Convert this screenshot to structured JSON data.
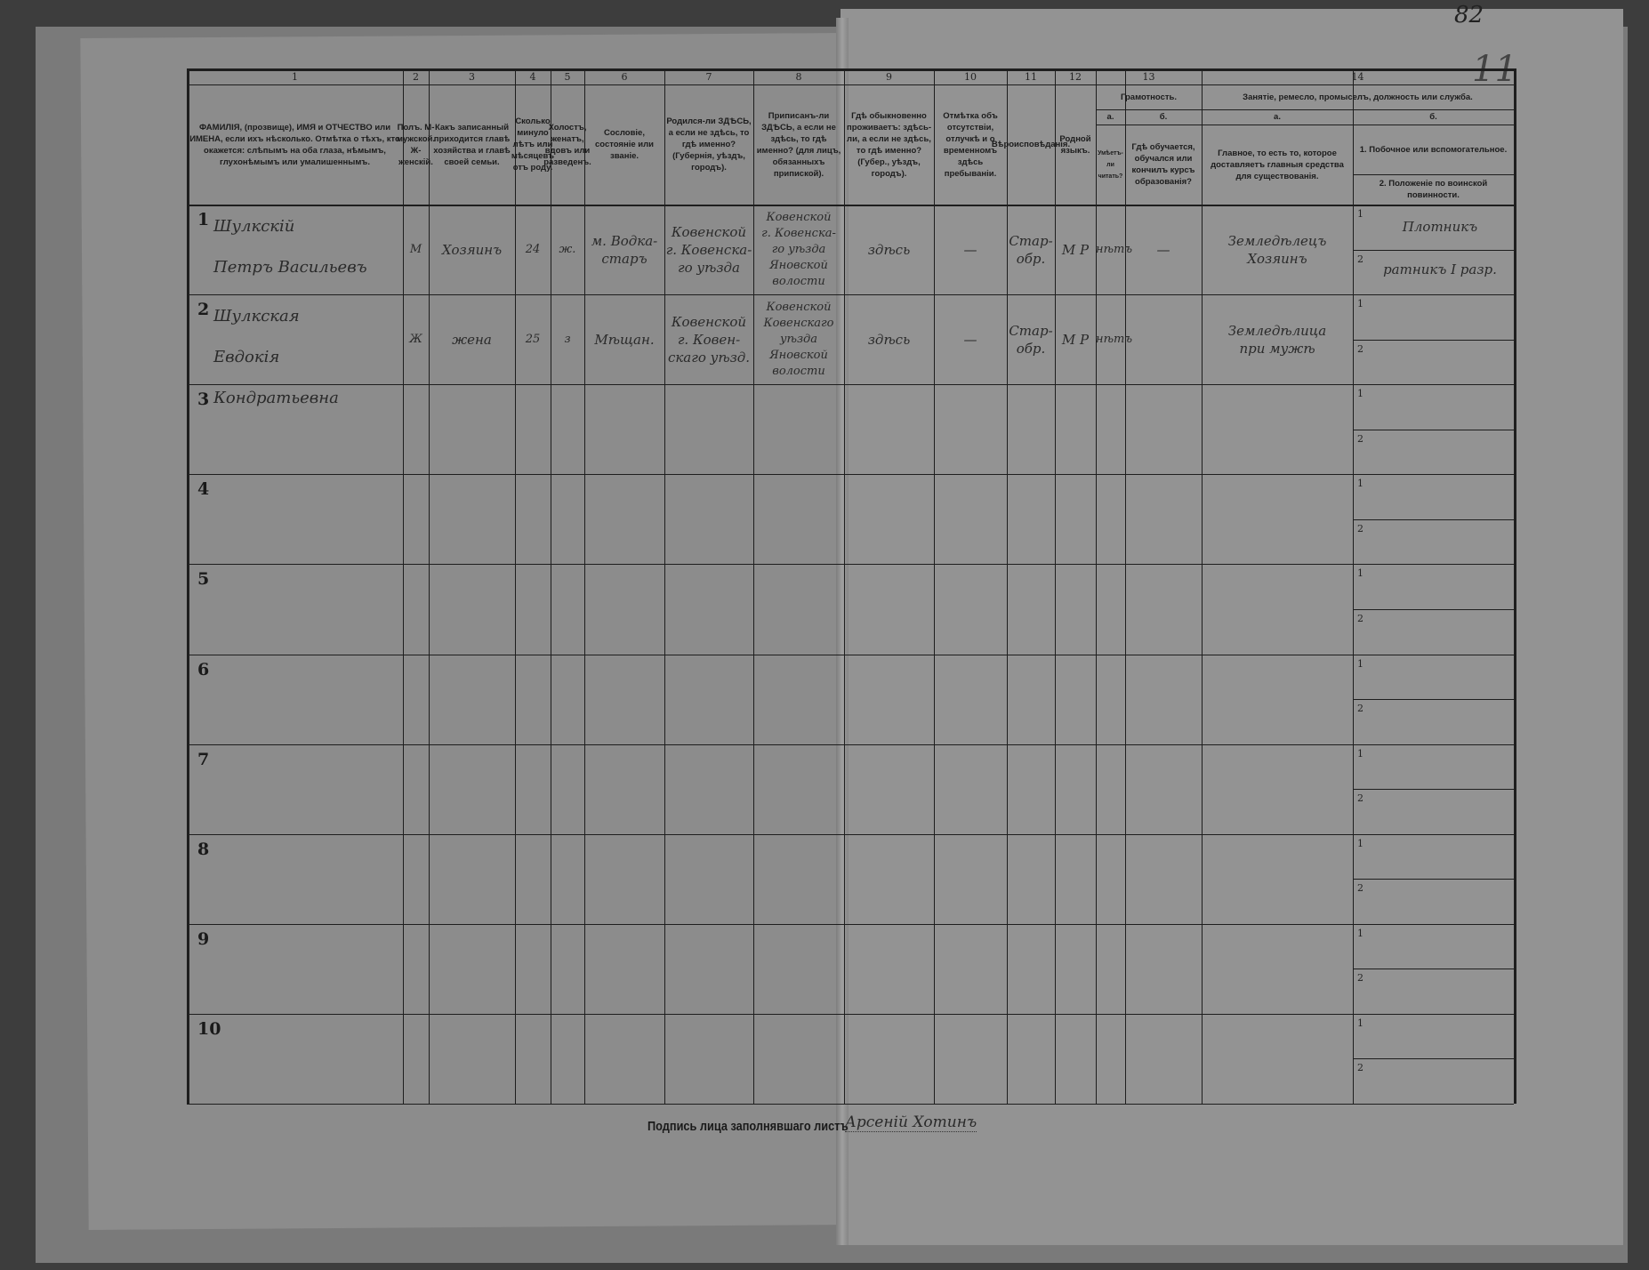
{
  "document": {
    "page_number": "82",
    "page_mark": "11",
    "column_numbers": [
      "1",
      "2",
      "3",
      "4",
      "5",
      "6",
      "7",
      "8",
      "9",
      "10",
      "11",
      "12",
      "13",
      "14"
    ],
    "headers": {
      "c1": "ФАМИЛІЯ, (прозвище), ИМЯ и ОТЧЕСТВО или ИМЕНА, если ихъ нѣсколько. Отмѣтка о тѣхъ, кто окажется: слѣпымъ на оба глаза, нѣмымъ, глухонѣмымъ или умалишеннымъ.",
      "c2": "Полъ. М-мужской. Ж-женскій.",
      "c3": "Какъ записанный приходится главѣ хозяйства и главѣ своей семьи.",
      "c4": "Сколько минуло лѣтъ или мѣсяцевъ отъ роду.",
      "c5": "Холостъ, женатъ, вдовъ или разведенъ.",
      "c6": "Сословіе, состояніе или званіе.",
      "c7": "Родился-ли ЗДѢСЬ, а если не здѣсь, то гдѣ именно? (Губернія, уѣздъ, городъ).",
      "c8": "Приписанъ-ли ЗДѢСЬ, а если не здѣсь, то гдѣ именно? (для лицъ, обязанныхъ припиской).",
      "c9": "Гдѣ обыкновенно проживаетъ: здѣсь-ли, а если не здѣсь, то гдѣ именно? (Губер., уѣздъ, городъ).",
      "c10": "Отмѣтка объ отсутствіи, отлучкѣ и о временномъ здѣсь пребываніи.",
      "c11": "Вѣроисповѣданія.",
      "c12": "Родной языкъ.",
      "c13": "Грамотность.",
      "c13a_letter": "а.",
      "c13a": "Умѣетъ-ли читать?",
      "c13b_letter": "б.",
      "c13b": "Гдѣ обучается, обучался или кончилъ курсъ образованія?",
      "c14": "Занятіе, ремесло, промыселъ, должность или служба.",
      "c14a_letter": "а.",
      "c14a": "Главное, то есть то, которое доставляетъ главныя средства для существованія.",
      "c14b_letter": "б.",
      "c14b1": "1. Побочное или вспомогательное.",
      "c14b2": "2. Положеніе по воинской повинности."
    },
    "rows": [
      {
        "n": "1",
        "name": "Шулкскій\nПетръ Васильевъ",
        "sex": "М",
        "relation": "Хозяинъ",
        "age": "24",
        "marital": "ж.",
        "estate": "м. Водка-\nстаръ",
        "birth": "Ковенской\nг. Ковенска-\nго уѣзда",
        "registered": "Ковенской\nг. Ковенска-\nго уѣзда\nЯновской\nволости",
        "residence": "здѣсь",
        "absence": "—",
        "religion": "Стар-\nобр.",
        "language": "М Р",
        "literacy": "нѣтъ",
        "education": "—",
        "main_occupation": "Земледѣлецъ\nХозяинъ",
        "side_occupation": "Плотникъ",
        "military": "ратникъ I разр."
      },
      {
        "n": "2",
        "name": "Шулкская\nЕвдокія Кондратьевна",
        "sex": "Ж",
        "relation": "жена",
        "age": "25",
        "marital": "з",
        "estate": "Мѣщан.",
        "birth": "Ковенской\nг. Ковен-\nскаго уѣзд.",
        "registered": "Ковенской\nКовенскаго\nуѣзда\nЯновской\nволости",
        "residence": "здѣсь",
        "absence": "—",
        "religion": "Стар-\nобр.",
        "language": "М Р",
        "literacy": "нѣтъ",
        "education": "",
        "main_occupation": "Земледѣлица\nпри мужѣ",
        "side_occupation": "",
        "military": ""
      },
      {
        "n": "3"
      },
      {
        "n": "4"
      },
      {
        "n": "5"
      },
      {
        "n": "6"
      },
      {
        "n": "7"
      },
      {
        "n": "8"
      },
      {
        "n": "9"
      },
      {
        "n": "10"
      }
    ],
    "sub_row_labels": [
      "1",
      "2"
    ],
    "signature_label": "Подпись лица заполнявшаго листъ",
    "signature": "Арсеній Хотинъ"
  }
}
